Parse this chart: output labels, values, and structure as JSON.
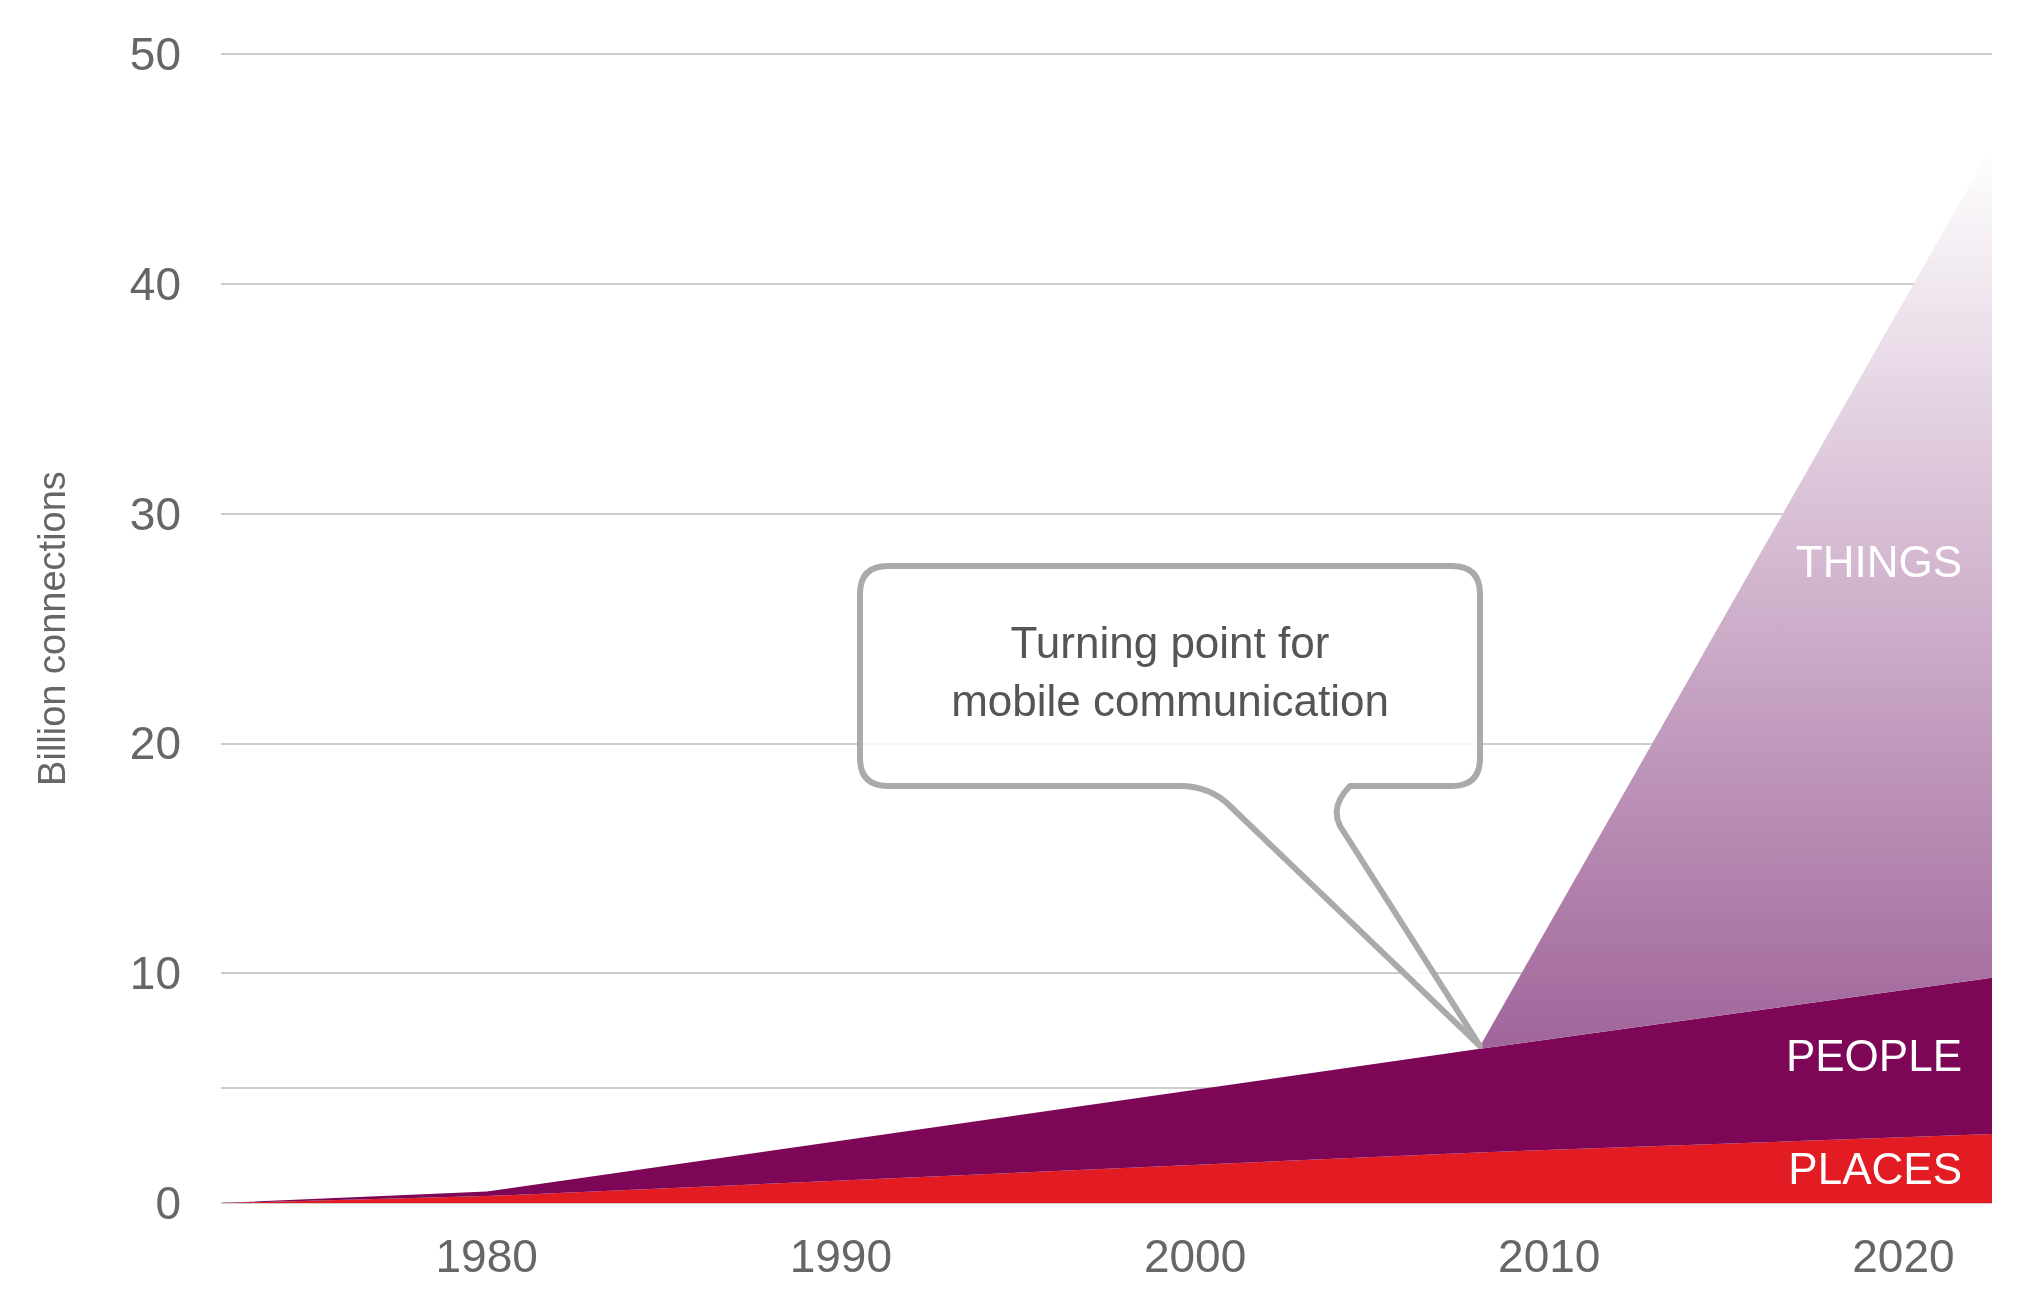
{
  "chart_data": {
    "type": "area",
    "stacked": true,
    "ylabel": "Billion connections",
    "x": [
      1972.5,
      1980,
      2008,
      2022.5
    ],
    "series": [
      {
        "name": "PLACES",
        "color": "#e31b23",
        "values": [
          0,
          0.3,
          2.2,
          3.0
        ]
      },
      {
        "name": "PEOPLE",
        "color": "#7d0657",
        "values": [
          0,
          0.2,
          4.5,
          6.8
        ]
      },
      {
        "name": "THINGS",
        "color": "#a0659a",
        "values": [
          null,
          null,
          0,
          36.2
        ]
      }
    ],
    "xlim": [
      1972.5,
      2022.5
    ],
    "xticks": [
      1980,
      1990,
      2000,
      2010,
      2020
    ],
    "ylim": [
      0,
      50
    ],
    "yticks": [
      0,
      {
        "value": 5,
        "label": null
      },
      10,
      20,
      30,
      40,
      50
    ],
    "grid": "y",
    "legend": false,
    "annotations": [
      "Turning point for\nmobile communication"
    ]
  }
}
